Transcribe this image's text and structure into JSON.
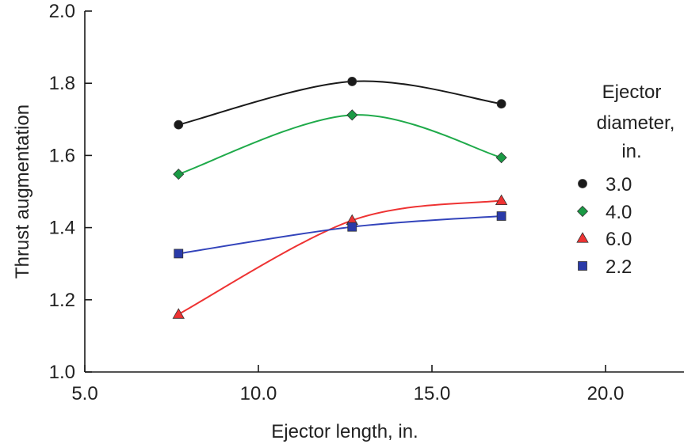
{
  "chart_data": {
    "type": "line",
    "title": "",
    "xlabel": "Ejector length, in.",
    "ylabel": "Thrust augmentation",
    "xlim": [
      5.0,
      22.5
    ],
    "ylim": [
      1.0,
      2.0
    ],
    "x_ticks": [
      5.0,
      10.0,
      15.0,
      20.0
    ],
    "x_tick_labels": [
      "5.0",
      "10.0",
      "15.0",
      "20.0"
    ],
    "y_ticks": [
      1.0,
      1.2,
      1.4,
      1.6,
      1.8,
      2.0
    ],
    "y_tick_labels": [
      "1.0",
      "1.2",
      "1.4",
      "1.6",
      "1.8",
      "2.0"
    ],
    "grid": false,
    "legend": {
      "title_lines": [
        "Ejector",
        "diameter,",
        "in."
      ],
      "placement": "right"
    },
    "series": [
      {
        "name": "3.0",
        "marker": "circle",
        "color": "#1a1a1a",
        "marker_color": "#1a1a1a",
        "x": [
          7.7,
          12.7,
          17.0
        ],
        "values": [
          1.685,
          1.805,
          1.743
        ]
      },
      {
        "name": "4.0",
        "marker": "diamond",
        "color": "#1faa4a",
        "marker_color": "#1a9a44",
        "x": [
          7.7,
          12.7,
          17.0
        ],
        "values": [
          1.548,
          1.712,
          1.594
        ]
      },
      {
        "name": "6.0",
        "marker": "triangle",
        "color": "#ee3333",
        "marker_color": "#ee3333",
        "x": [
          7.7,
          12.7,
          17.0
        ],
        "values": [
          1.16,
          1.42,
          1.475
        ]
      },
      {
        "name": "2.2",
        "marker": "square",
        "color": "#3344bb",
        "marker_color": "#2a3aa8",
        "x": [
          7.7,
          12.7,
          17.0
        ],
        "values": [
          1.328,
          1.402,
          1.432
        ]
      }
    ]
  }
}
